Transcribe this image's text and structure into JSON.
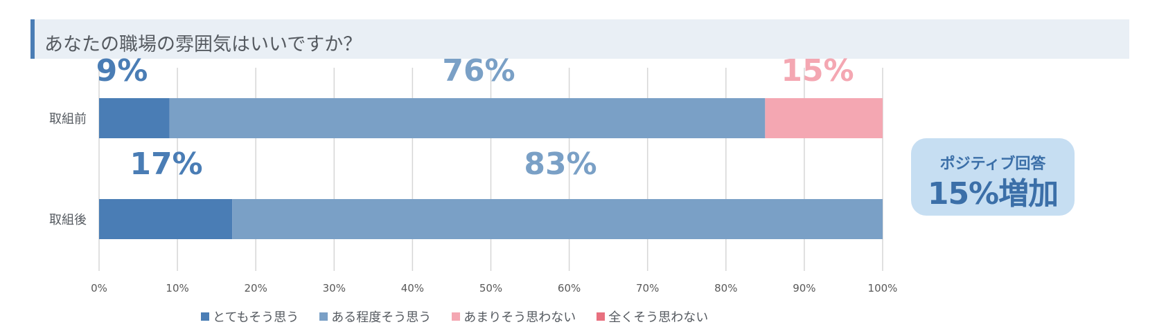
{
  "chart_data": {
    "type": "bar",
    "orientation": "horizontal",
    "stacked": true,
    "title": "あなたの職場の雰囲気はいいですか？",
    "categories": [
      "取組前",
      "取組後"
    ],
    "series": [
      {
        "name": "とてもそう思う",
        "values": [
          9,
          17
        ],
        "color": "#4a7db5"
      },
      {
        "name": "ある程度そう思う",
        "values": [
          76,
          83
        ],
        "color": "#7aa0c6"
      },
      {
        "name": "あまりそう思わない",
        "values": [
          15,
          0
        ],
        "color": "#f4a7b2"
      },
      {
        "name": "全くそう思わない",
        "values": [
          0,
          0
        ],
        "color": "#e8707f"
      }
    ],
    "data_labels": [
      {
        "text": "9%",
        "category": "取組前",
        "series": "とてもそう思う"
      },
      {
        "text": "76%",
        "category": "取組前",
        "series": "ある程度そう思う"
      },
      {
        "text": "15%",
        "category": "取組前",
        "series": "あまりそう思わない"
      },
      {
        "text": "17%",
        "category": "取組後",
        "series": "とてもそう思う"
      },
      {
        "text": "83%",
        "category": "取組後",
        "series": "ある程度そう思う"
      }
    ],
    "xlim": [
      0,
      100
    ],
    "xticks": [
      "0%",
      "10%",
      "20%",
      "30%",
      "40%",
      "50%",
      "60%",
      "70%",
      "80%",
      "90%",
      "100%"
    ],
    "grid": true,
    "legend_position": "bottom"
  },
  "badge": {
    "line1": "ポジティブ回答",
    "line2": "15%増加"
  }
}
